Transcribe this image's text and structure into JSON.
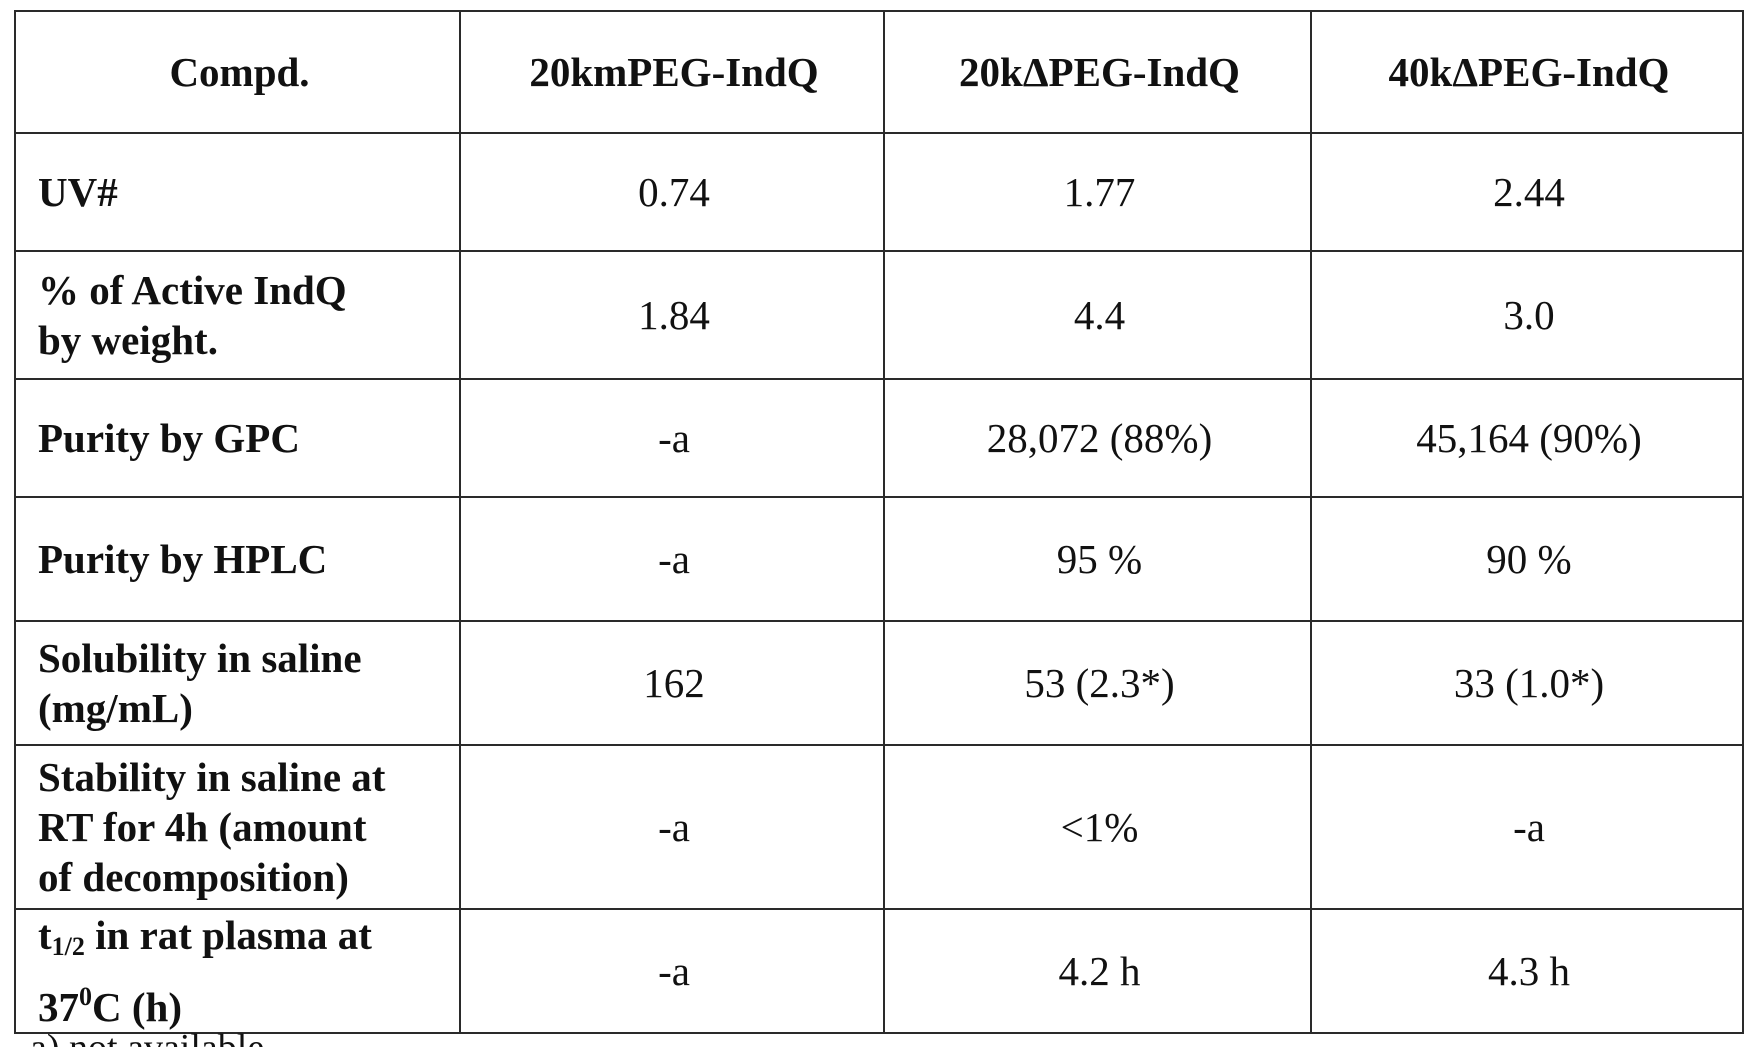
{
  "table": {
    "headers": [
      "Compd.",
      "20kmPEG-IndQ",
      "20kΔPEG-IndQ",
      "40kΔPEG-IndQ"
    ],
    "rows": [
      {
        "label": "UV#",
        "values": [
          "0.74",
          "1.77",
          "2.44"
        ]
      },
      {
        "label_line1": "% of Active IndQ",
        "label_line2": "by weight.",
        "values": [
          "1.84",
          "4.4",
          "3.0"
        ]
      },
      {
        "label": "Purity by GPC",
        "values": [
          "-a",
          "28,072 (88%)",
          "45,164 (90%)"
        ]
      },
      {
        "label": "Purity by HPLC",
        "values": [
          "-a",
          "95 %",
          "90 %"
        ]
      },
      {
        "label_line1": "Solubility in saline",
        "label_line2": "(mg/mL)",
        "values": [
          "162",
          "53 (2.3*)",
          "33 (1.0*)"
        ]
      },
      {
        "label_line1": "Stability in saline at",
        "label_line2": "RT for 4h (amount",
        "label_line3": "of decomposition)",
        "values": [
          "-a",
          "<1%",
          "-a"
        ]
      },
      {
        "label_t": "t",
        "label_sub": "1/2",
        "label_rest": " in rat plasma at",
        "label_line2_a": "37",
        "label_sup": "0",
        "label_line2_b": "C (h)",
        "values": [
          "-a",
          "4.2 h",
          "4.3 h"
        ]
      }
    ]
  },
  "footnote": "a) not available"
}
